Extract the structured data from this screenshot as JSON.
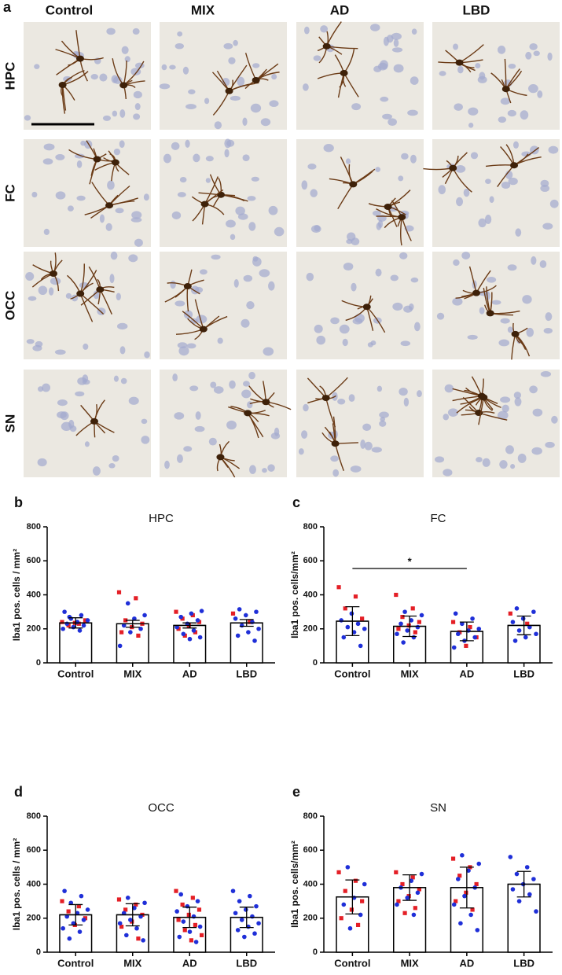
{
  "panel_a": {
    "label": "a",
    "columns": [
      "Control",
      "MIX",
      "AD",
      "LBD"
    ],
    "rows": [
      "HPC",
      "FC",
      "OCC",
      "SN"
    ]
  },
  "chart_data": [
    {
      "type": "bar",
      "panel": "b",
      "title": "HPC",
      "ylabel": "Iba1 pos. cells / mm²",
      "categories": [
        "Control",
        "MIX",
        "AD",
        "LBD"
      ],
      "values": [
        235,
        230,
        220,
        235
      ],
      "errors": [
        30,
        20,
        15,
        20
      ],
      "red_points": [
        [
          240,
          230,
          220,
          250,
          235
        ],
        [
          415,
          380,
          250,
          230,
          210,
          180,
          160
        ],
        [
          300,
          280,
          260,
          240,
          220,
          200,
          180,
          160
        ],
        [
          290,
          240
        ]
      ],
      "blue_points": [
        [
          300,
          280,
          260,
          250,
          240,
          230,
          220,
          210,
          200,
          190,
          270
        ],
        [
          350,
          280,
          260,
          220,
          200,
          180,
          100
        ],
        [
          305,
          290,
          270,
          250,
          230,
          210,
          190,
          170,
          150,
          140
        ],
        [
          315,
          300,
          280,
          260,
          240,
          220,
          200,
          180,
          160,
          130
        ]
      ],
      "point_colors": {
        "red": "#e41f26",
        "blue": "#1f2fd8"
      },
      "ylim": [
        0,
        800
      ],
      "yticks": [
        0,
        200,
        400,
        600,
        800
      ]
    },
    {
      "type": "bar",
      "panel": "c",
      "title": "FC",
      "ylabel": "Iba1 pos. cells/mm²",
      "categories": [
        "Control",
        "MIX",
        "AD",
        "LBD"
      ],
      "values": [
        245,
        215,
        185,
        220
      ],
      "errors": [
        85,
        60,
        55,
        55
      ],
      "red_points": [
        [
          445,
          390,
          320,
          260
        ],
        [
          400,
          320,
          270,
          240,
          220,
          200,
          180
        ],
        [
          240,
          210,
          180,
          150,
          100
        ],
        [
          290,
          230
        ]
      ],
      "blue_points": [
        [
          290,
          250,
          230,
          210,
          200,
          180,
          150,
          100
        ],
        [
          300,
          280,
          250,
          230,
          210,
          190,
          170,
          150,
          120
        ],
        [
          290,
          260,
          230,
          200,
          190,
          170,
          150,
          130,
          90
        ],
        [
          320,
          300,
          260,
          240,
          210,
          190,
          170,
          150,
          130
        ]
      ],
      "point_colors": {
        "red": "#e41f26",
        "blue": "#1f2fd8"
      },
      "ylim": [
        0,
        800
      ],
      "yticks": [
        0,
        200,
        400,
        600,
        800
      ],
      "significance": {
        "label": "*",
        "categories": [
          "Control",
          "AD"
        ],
        "y": 555
      }
    },
    {
      "type": "bar",
      "panel": "d",
      "title": "OCC",
      "ylabel": "Iba1 pos. cells / mm²",
      "categories": [
        "Control",
        "MIX",
        "AD",
        "LBD"
      ],
      "values": [
        220,
        220,
        205,
        205
      ],
      "errors": [
        60,
        65,
        60,
        60
      ],
      "red_points": [
        [
          300,
          270,
          240,
          200,
          160
        ],
        [
          310,
          280,
          250,
          220,
          180,
          150,
          80
        ],
        [
          360,
          320,
          280,
          250,
          220,
          190,
          160,
          130,
          100,
          70
        ],
        []
      ],
      "blue_points": [
        [
          360,
          330,
          290,
          250,
          230,
          210,
          190,
          170,
          140,
          120,
          80
        ],
        [
          320,
          290,
          260,
          230,
          210,
          190,
          170,
          140,
          100,
          70
        ],
        [
          340,
          300,
          270,
          240,
          210,
          180,
          150,
          120,
          90,
          60
        ],
        [
          360,
          330,
          300,
          270,
          250,
          230,
          210,
          190,
          170,
          150,
          130,
          110,
          90
        ]
      ],
      "point_colors": {
        "red": "#e41f26",
        "blue": "#1f2fd8"
      },
      "ylim": [
        0,
        800
      ],
      "yticks": [
        0,
        200,
        400,
        600,
        800
      ]
    },
    {
      "type": "bar",
      "panel": "e",
      "title": "SN",
      "ylabel": "Iba1 pos. cells/mm²",
      "categories": [
        "Control",
        "MIX",
        "AD",
        "LBD"
      ],
      "values": [
        325,
        380,
        380,
        400
      ],
      "errors": [
        100,
        75,
        120,
        75
      ],
      "red_points": [
        [
          470,
          420,
          360,
          300,
          250,
          200,
          160
        ],
        [
          470,
          440,
          400,
          370,
          330,
          300,
          260,
          230
        ],
        [
          550,
          500,
          450,
          400,
          350,
          300,
          250
        ],
        []
      ],
      "blue_points": [
        [
          500,
          400,
          320,
          280,
          220,
          140
        ],
        [
          460,
          420,
          380,
          350,
          320,
          280,
          220
        ],
        [
          570,
          520,
          480,
          430,
          380,
          330,
          280,
          220,
          170,
          130
        ],
        [
          560,
          500,
          460,
          430,
          400,
          370,
          340,
          300,
          240
        ]
      ],
      "point_colors": {
        "red": "#e41f26",
        "blue": "#1f2fd8"
      },
      "ylim": [
        0,
        800
      ],
      "yticks": [
        0,
        200,
        400,
        600,
        800
      ]
    }
  ]
}
